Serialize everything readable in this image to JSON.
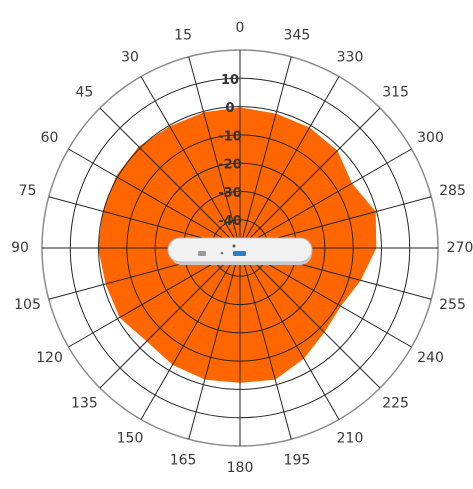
{
  "chart_data": {
    "type": "polar-area",
    "title": "",
    "angle_direction": "counterclockwise",
    "angle_zero": "top",
    "angle_step_deg": 15,
    "angle_labels": [
      "0",
      "15",
      "30",
      "45",
      "60",
      "75",
      "90",
      "105",
      "120",
      "135",
      "150",
      "165",
      "180",
      "195",
      "210",
      "225",
      "240",
      "255",
      "270",
      "285",
      "300",
      "315",
      "330",
      "345"
    ],
    "radial_tick_labels": [
      "10",
      "0",
      "-10",
      "-20",
      "-30",
      "-40"
    ],
    "radial_range": [
      -50,
      20
    ],
    "radial_ticks": [
      10,
      0,
      -10,
      -20,
      -30,
      -40
    ],
    "grid": true,
    "series": [
      {
        "color": "#ff6600",
        "angles": [
          0,
          15,
          30,
          45,
          60,
          75,
          90,
          105,
          120,
          135,
          150,
          165,
          180,
          195,
          210,
          225,
          240,
          255,
          270,
          285,
          300,
          315,
          330,
          345
        ],
        "values": [
          -0.5,
          -0.5,
          -0.5,
          0.5,
          0.5,
          0,
          0,
          -1,
          -1,
          -3.5,
          -2.5,
          -2,
          -2.5,
          -2,
          -5,
          -8,
          -9,
          -6,
          -2,
          -0.5,
          -4.5,
          -1.5,
          -1,
          -1
        ]
      }
    ],
    "center_image": "access-point-device"
  }
}
